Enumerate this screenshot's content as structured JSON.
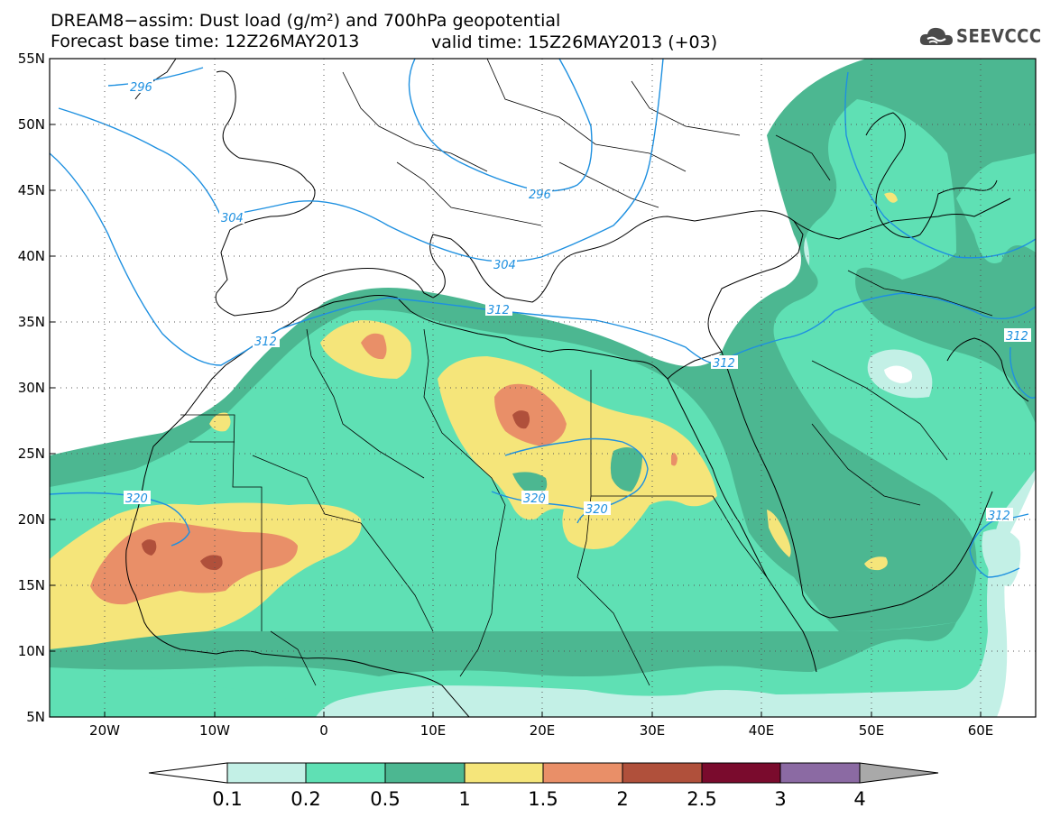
{
  "title_line1": "DREAM8−assim: Dust load (g/m²) and 700hPa geopotential",
  "title_line2_left": "Forecast base time: 12Z26MAY2013",
  "title_line2_right": "valid time: 15Z26MAY2013 (+03)",
  "logo_text": "SEEVCCC",
  "colors": {
    "c01": "#c3f0e6",
    "c02": "#5fe0b4",
    "c05": "#4cb791",
    "c1": "#f5e57a",
    "c15": "#e98f68",
    "c2": "#b0503b",
    "c25": "#7a0b2d",
    "c3": "#8b6aa3",
    "c4": "#a9a9a9",
    "contour": "#1e90e0",
    "border": "#000000"
  },
  "lat_labels": [
    "55N",
    "50N",
    "45N",
    "40N",
    "35N",
    "30N",
    "25N",
    "20N",
    "15N",
    "10N",
    "5N"
  ],
  "lon_labels": [
    "20W",
    "10W",
    "0",
    "10E",
    "20E",
    "30E",
    "40E",
    "50E",
    "60E"
  ],
  "colorbar_labels": [
    "0.1",
    "0.2",
    "0.5",
    "1",
    "1.5",
    "2",
    "2.5",
    "3",
    "4"
  ],
  "contour_labels": [
    "296",
    "296",
    "304",
    "304",
    "312",
    "312",
    "312",
    "312",
    "312",
    "320",
    "320",
    "320"
  ]
}
